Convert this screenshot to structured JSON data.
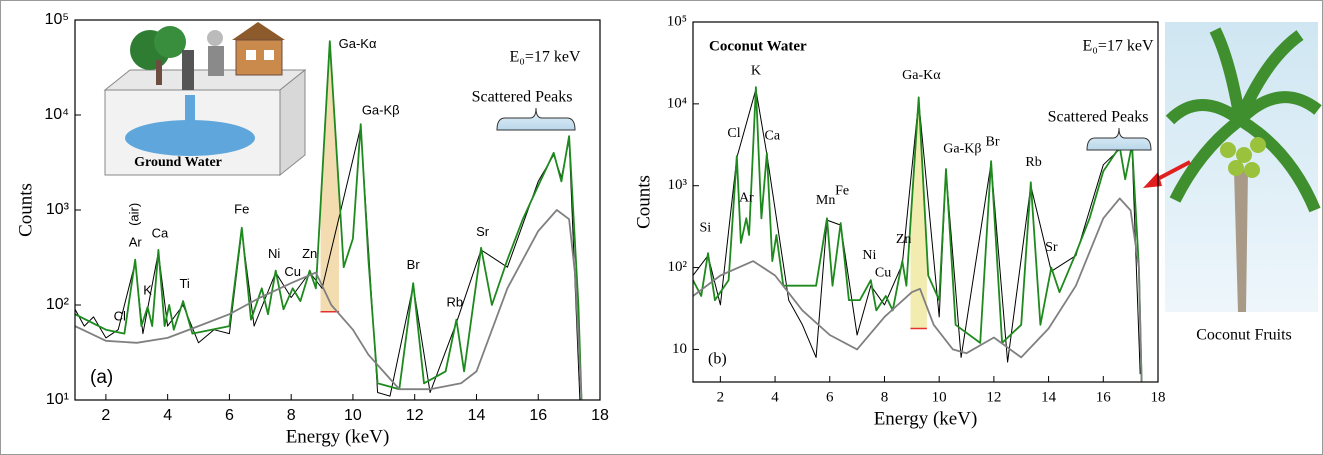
{
  "chart_data": [
    {
      "type": "line",
      "xlabel": "Energy (keV)",
      "ylabel": "Counts",
      "log_y": true,
      "xlim": [
        1,
        18
      ],
      "xticks": [
        2,
        4,
        6,
        8,
        10,
        12,
        14,
        16,
        18
      ],
      "ylim": [
        10,
        100000
      ],
      "yticks": [
        {
          "value": 10,
          "label": "10¹"
        },
        {
          "value": 100,
          "label": "10²"
        },
        {
          "value": 1000,
          "label": "10³"
        },
        {
          "value": 10000,
          "label": "10⁴"
        },
        {
          "value": 100000,
          "label": "10⁵"
        }
      ],
      "panel_label": "(a)",
      "energy_note": "E₀=17 keV",
      "bracket_label": "Scattered Peaks",
      "inset_label": "Ground Water",
      "highlight": {
        "x": [
          8.95,
          9.55
        ],
        "base": 85,
        "color": "#f3dcb0"
      },
      "series": [
        {
          "color": "#000000",
          "x": [
            1.0,
            1.3,
            1.6,
            2.0,
            2.4,
            2.95,
            3.2,
            3.7,
            4.0,
            4.5,
            5.0,
            5.5,
            6.0,
            6.4,
            6.8,
            7.5,
            8.0,
            8.6,
            9.0,
            10.25,
            10.8,
            11.2,
            11.95,
            12.5,
            13.35,
            14.15,
            15,
            16,
            16.5,
            16.75,
            17.0,
            17.35
          ],
          "values": [
            90,
            60,
            75,
            45,
            55,
            280,
            50,
            360,
            60,
            100,
            40,
            55,
            50,
            600,
            60,
            220,
            120,
            220,
            150,
            7500,
            12,
            11,
            160,
            12,
            65,
            380,
            250,
            2000,
            3800,
            2200,
            5500,
            10
          ]
        },
        {
          "color": "#1e8a1e",
          "x": [
            1.0,
            2.0,
            2.6,
            2.95,
            3.15,
            3.35,
            3.5,
            3.7,
            3.9,
            4.05,
            4.2,
            4.5,
            4.8,
            6.0,
            6.4,
            6.7,
            7.05,
            7.25,
            7.5,
            7.75,
            8.05,
            8.3,
            8.6,
            8.8,
            9.25,
            9.7,
            10.0,
            10.25,
            10.5,
            10.8,
            11.5,
            11.95,
            12.3,
            13.0,
            13.35,
            13.6,
            14.15,
            14.5,
            15,
            15.5,
            16.0,
            16.5,
            16.75,
            17.0,
            17.3,
            17.4
          ],
          "values": [
            80,
            55,
            50,
            300,
            60,
            95,
            60,
            380,
            60,
            100,
            55,
            110,
            50,
            60,
            650,
            70,
            150,
            80,
            230,
            90,
            150,
            110,
            230,
            150,
            60000,
            250,
            500,
            8000,
            300,
            15,
            13,
            170,
            15,
            20,
            70,
            20,
            400,
            100,
            300,
            800,
            1800,
            4000,
            2000,
            6000,
            100,
            10
          ]
        },
        {
          "color": "#808080",
          "x": [
            1,
            2,
            3,
            4,
            5,
            6,
            7,
            8,
            8.8,
            9.3,
            10,
            10.5,
            11.5,
            12.5,
            13.5,
            14,
            15,
            16,
            16.6,
            17,
            17.2,
            17.4
          ],
          "values": [
            60,
            42,
            40,
            45,
            60,
            80,
            120,
            170,
            220,
            100,
            55,
            30,
            13,
            13,
            15,
            20,
            150,
            600,
            1000,
            800,
            200,
            10
          ]
        }
      ],
      "annotations": [
        {
          "text": "Cl",
          "x": 2.45,
          "y": 75
        },
        {
          "text": "(air)",
          "x": 2.95,
          "y": 900
        },
        {
          "text": "Ar",
          "x": 2.95,
          "y": 450
        },
        {
          "text": "K",
          "x": 3.35,
          "y": 140
        },
        {
          "text": "Ca",
          "x": 3.75,
          "y": 560
        },
        {
          "text": "Ti",
          "x": 4.55,
          "y": 165
        },
        {
          "text": "Fe",
          "x": 6.4,
          "y": 1000
        },
        {
          "text": "Ni",
          "x": 7.45,
          "y": 340
        },
        {
          "text": "Cu",
          "x": 8.05,
          "y": 220
        },
        {
          "text": "Zn",
          "x": 8.6,
          "y": 340
        },
        {
          "text": "Ga-Kα",
          "x": 10.15,
          "y": 55000
        },
        {
          "text": "Ga-Kβ",
          "x": 10.9,
          "y": 11000
        },
        {
          "text": "Br",
          "x": 11.95,
          "y": 260
        },
        {
          "text": "Rb",
          "x": 13.3,
          "y": 105
        },
        {
          "text": "Sr",
          "x": 14.2,
          "y": 580
        }
      ]
    },
    {
      "type": "line",
      "xlabel": "Energy (keV)",
      "ylabel": "Counts",
      "log_y": true,
      "xlim": [
        1,
        18
      ],
      "xticks": [
        2,
        4,
        6,
        8,
        10,
        12,
        14,
        16,
        18
      ],
      "ylim": [
        4,
        100000
      ],
      "yticks": [
        10,
        {
          "value": 100,
          "label": "10²"
        },
        {
          "value": 1000,
          "label": "10³"
        },
        {
          "value": 10000,
          "label": "10⁴"
        },
        {
          "value": 100000,
          "label": "10⁵"
        }
      ],
      "panel_label": "(b)",
      "title": "Coconut Water",
      "energy_note": "E₀=17 keV",
      "bracket_label": "Scattered Peaks",
      "inset_label": "Coconut Fruits",
      "highlight": {
        "x": [
          8.95,
          9.55
        ],
        "base": 18,
        "color": "#f3ecb0"
      },
      "series": [
        {
          "color": "#000000",
          "x": [
            1,
            1.55,
            2,
            2.6,
            3.3,
            3.7,
            4.5,
            5,
            5.5,
            5.9,
            6.4,
            7,
            7.5,
            8,
            8.65,
            9.25,
            10,
            10.25,
            10.8,
            11.9,
            12.5,
            13.35,
            14.1,
            15,
            16,
            16.6,
            17.05,
            17.35
          ],
          "values": [
            80,
            140,
            35,
            2200,
            15000,
            2400,
            40,
            20,
            8,
            380,
            330,
            15,
            60,
            35,
            110,
            11000,
            25,
            1500,
            8,
            1900,
            7,
            1000,
            90,
            140,
            1800,
            2800,
            3000,
            5
          ]
        },
        {
          "color": "#1e8a1e",
          "x": [
            1,
            1.3,
            1.55,
            1.8,
            2.3,
            2.6,
            2.75,
            2.95,
            3.05,
            3.3,
            3.5,
            3.7,
            3.9,
            4.05,
            4.3,
            5.5,
            5.9,
            6.1,
            6.4,
            6.7,
            7.1,
            7.5,
            7.7,
            8.05,
            8.3,
            8.65,
            8.8,
            9.25,
            9.6,
            10.0,
            10.25,
            10.6,
            11.5,
            11.9,
            12.3,
            13.0,
            13.35,
            13.7,
            14.1,
            14.4,
            15,
            15.5,
            16.0,
            16.6,
            16.8,
            17.05,
            17.3,
            17.4
          ],
          "values": [
            70,
            45,
            150,
            40,
            70,
            2300,
            200,
            400,
            250,
            16000,
            400,
            2500,
            120,
            250,
            60,
            60,
            400,
            60,
            350,
            40,
            40,
            70,
            30,
            45,
            30,
            120,
            60,
            12000,
            80,
            40,
            1600,
            20,
            12,
            2000,
            12,
            20,
            1100,
            20,
            100,
            50,
            150,
            400,
            1500,
            3000,
            1200,
            3200,
            100,
            4
          ]
        },
        {
          "color": "#808080",
          "x": [
            1,
            2,
            3.2,
            4,
            5,
            6,
            7,
            8,
            9,
            9.3,
            9.8,
            10.5,
            11,
            12,
            13,
            14,
            15,
            16,
            16.6,
            17,
            17.3,
            17.4
          ],
          "values": [
            45,
            80,
            120,
            80,
            30,
            15,
            10,
            25,
            50,
            55,
            20,
            10,
            9,
            14,
            8,
            18,
            60,
            400,
            700,
            500,
            100,
            4
          ]
        }
      ],
      "annotations": [
        {
          "text": "Si",
          "x": 1.45,
          "y": 300
        },
        {
          "text": "Cl",
          "x": 2.5,
          "y": 4300
        },
        {
          "text": "Ar",
          "x": 2.95,
          "y": 700
        },
        {
          "text": "K",
          "x": 3.3,
          "y": 25000
        },
        {
          "text": "Ca",
          "x": 3.9,
          "y": 4000
        },
        {
          "text": "Mn",
          "x": 5.85,
          "y": 650
        },
        {
          "text": "Fe",
          "x": 6.45,
          "y": 850
        },
        {
          "text": "Ni",
          "x": 7.45,
          "y": 140
        },
        {
          "text": "Cu",
          "x": 7.95,
          "y": 85
        },
        {
          "text": "Zn",
          "x": 8.7,
          "y": 220
        },
        {
          "text": "Ga-Kα",
          "x": 9.35,
          "y": 22000
        },
        {
          "text": "Ga-Kβ",
          "x": 10.85,
          "y": 2800
        },
        {
          "text": "Br",
          "x": 11.95,
          "y": 3400
        },
        {
          "text": "Rb",
          "x": 13.45,
          "y": 1900
        },
        {
          "text": "Sr",
          "x": 14.1,
          "y": 175
        }
      ]
    }
  ]
}
